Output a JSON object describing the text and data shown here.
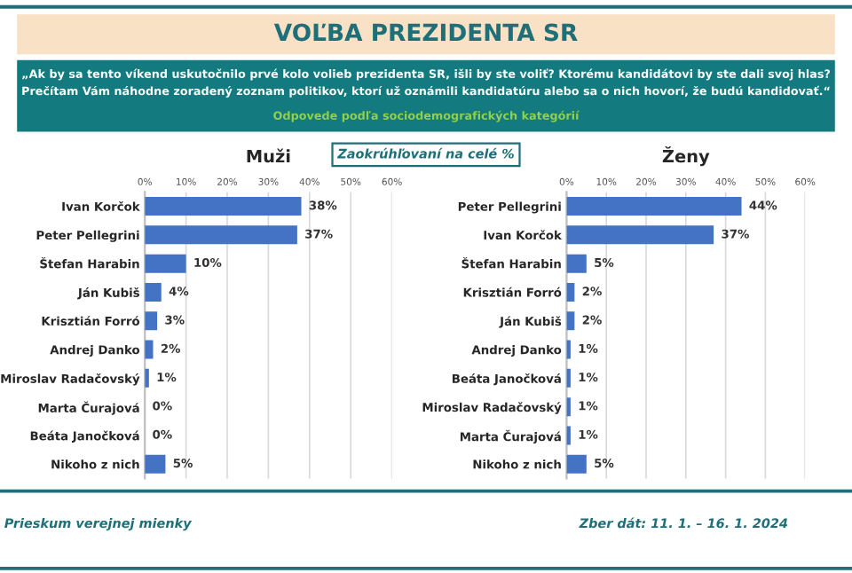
{
  "chart_data": [
    {
      "type": "bar",
      "orientation": "horizontal",
      "title": "Muži",
      "categories": [
        "Ivan Korčok",
        "Peter Pellegrini",
        "Štefan Harabin",
        "Ján Kubiš",
        "Krisztián Forró",
        "Andrej Danko",
        "Miroslav Radačovský",
        "Marta Čurajová",
        "Beáta Janočková",
        "Nikoho z nich"
      ],
      "values": [
        38,
        37,
        10,
        4,
        3,
        2,
        1,
        0,
        0,
        5
      ],
      "value_labels": [
        "38%",
        "37%",
        "10%",
        "4%",
        "3%",
        "2%",
        "1%",
        "0%",
        "0%",
        "5%"
      ],
      "color": "#4472c4",
      "grid": "x",
      "xlim": [
        0,
        60
      ],
      "xticks": [
        {
          "value": 0,
          "label": "0%"
        },
        {
          "value": 10,
          "label": "10%"
        },
        {
          "value": 20,
          "label": "20%"
        },
        {
          "value": 30,
          "label": "30%"
        },
        {
          "value": 40,
          "label": "40%"
        },
        {
          "value": 50,
          "label": "50%"
        },
        {
          "value": 60,
          "label": "60%"
        }
      ],
      "annotations": [
        "VOĽBA PREZIDENTA SR",
        "„Ak by sa tento víkend uskutočnilo prvé kolo volieb prezidenta SR, išli by ste voliť? Ktorému kandidátovi by ste dali svoj hlas?\nPrečítam Vám náhodne zoradený zoznam politikov, ktorí už oznámili kandidatúru alebo sa o nich hovorí, že budú kandidovať.“",
        "Odpovede podľa sociodemografických kategórií",
        "Zaokrúhľovaní na celé %",
        "Prieskum verejnej mienky",
        "Zber dát: 11. 1. – 16. 1. 2024"
      ]
    },
    {
      "type": "bar",
      "orientation": "horizontal",
      "title": "Ženy",
      "categories": [
        "Peter Pellegrini",
        "Ivan Korčok",
        "Štefan Harabin",
        "Krisztián Forró",
        "Ján Kubiš",
        "Andrej Danko",
        "Beáta Janočková",
        "Miroslav Radačovský",
        "Marta Čurajová",
        "Nikoho z nich"
      ],
      "values": [
        44,
        37,
        5,
        2,
        2,
        1,
        1,
        1,
        1,
        5
      ],
      "value_labels": [
        "44%",
        "37%",
        "5%",
        "2%",
        "2%",
        "1%",
        "1%",
        "1%",
        "1%",
        "5%"
      ],
      "color": "#4472c4",
      "grid": "x",
      "xlim": [
        0,
        60
      ],
      "xticks": [
        {
          "value": 0,
          "label": "0%"
        },
        {
          "value": 10,
          "label": "10%"
        },
        {
          "value": 20,
          "label": "20%"
        },
        {
          "value": 30,
          "label": "30%"
        },
        {
          "value": 40,
          "label": "40%"
        },
        {
          "value": 50,
          "label": "50%"
        },
        {
          "value": 60,
          "label": "60%"
        }
      ]
    }
  ]
}
